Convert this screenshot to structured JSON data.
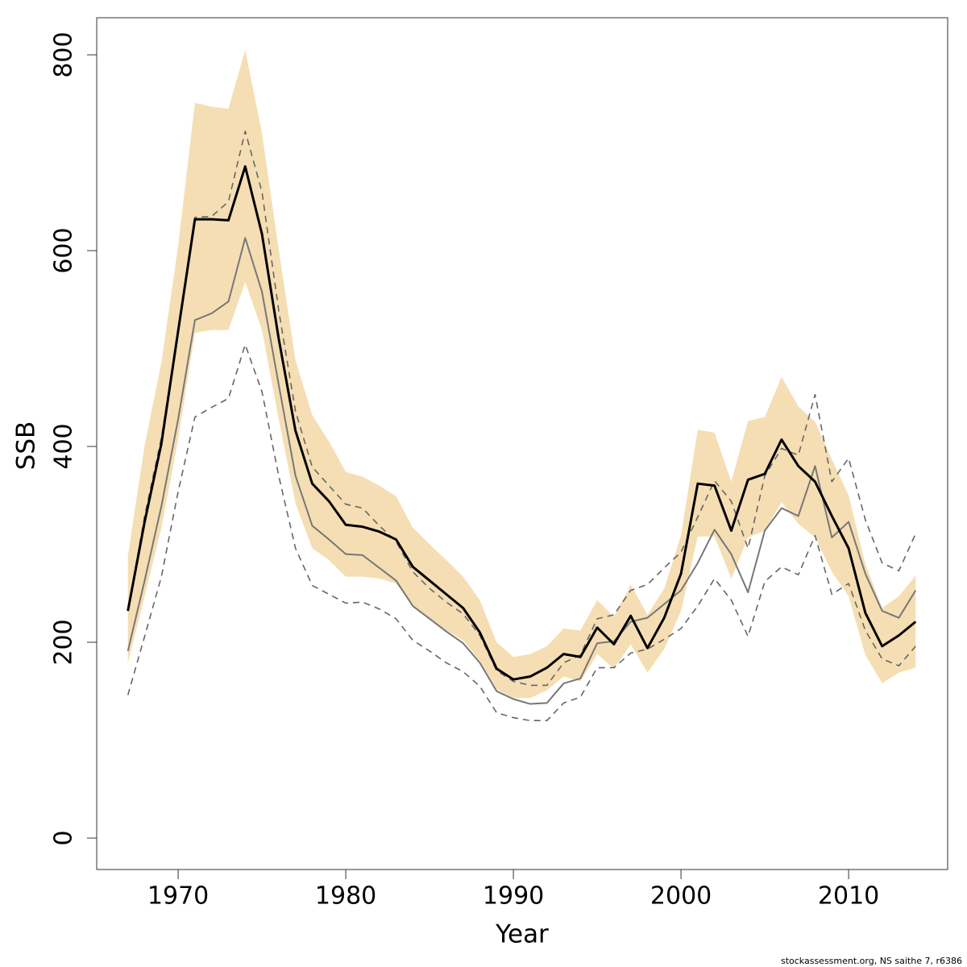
{
  "chart_data": {
    "type": "line",
    "x_label": "Year",
    "y_label": "SSB",
    "footnote": "stockassessment.org, NS saithe 7, r6386",
    "x": [
      1967,
      1968,
      1969,
      1970,
      1971,
      1972,
      1973,
      1974,
      1975,
      1976,
      1977,
      1978,
      1979,
      1980,
      1981,
      1982,
      1983,
      1984,
      1985,
      1986,
      1987,
      1988,
      1989,
      1990,
      1991,
      1992,
      1993,
      1994,
      1995,
      1996,
      1997,
      1998,
      1999,
      2000,
      2001,
      2002,
      2003,
      2004,
      2005,
      2006,
      2007,
      2008,
      2009,
      2010,
      2011,
      2012,
      2013,
      2014
    ],
    "band": {
      "color": "#f5deb3",
      "upper": [
        288,
        401,
        486,
        605,
        751,
        747,
        745,
        805,
        720,
        601,
        488,
        432,
        405,
        374,
        369,
        360,
        349,
        317,
        300,
        284,
        267,
        243,
        200,
        185,
        188,
        196,
        214,
        212,
        243,
        226,
        259,
        228,
        255,
        309,
        417,
        414,
        364,
        426,
        430,
        471,
        441,
        425,
        387,
        350,
        280,
        235,
        247,
        268
      ],
      "lower": [
        179,
        247,
        317,
        407,
        516,
        519,
        519,
        568,
        519,
        428,
        342,
        296,
        284,
        267,
        267,
        265,
        260,
        237,
        224,
        212,
        202,
        181,
        152,
        143,
        143,
        151,
        165,
        160,
        188,
        173,
        198,
        169,
        193,
        232,
        308,
        308,
        265,
        307,
        314,
        343,
        321,
        307,
        272,
        247,
        187,
        158,
        169,
        174
      ]
    },
    "series": [
      {
        "color": "#666666",
        "dashed": true,
        "width": 1.6,
        "values": [
          232,
          329,
          409,
          518,
          634,
          635,
          650,
          722,
          660,
          539,
          436,
          379,
          360,
          341,
          337,
          319,
          303,
          272,
          255,
          241,
          229,
          207,
          171,
          160,
          156,
          156,
          179,
          187,
          224,
          228,
          253,
          259,
          276,
          292,
          328,
          365,
          344,
          296,
          370,
          398,
          391,
          453,
          364,
          388,
          325,
          281,
          273,
          311
        ]
      },
      {
        "color": "#666666",
        "dashed": true,
        "width": 1.6,
        "values": [
          146,
          206,
          267,
          354,
          430,
          440,
          449,
          504,
          456,
          370,
          296,
          258,
          249,
          240,
          241,
          234,
          224,
          202,
          191,
          179,
          170,
          155,
          128,
          123,
          120,
          120,
          138,
          144,
          174,
          174,
          189,
          193,
          203,
          214,
          237,
          265,
          243,
          206,
          262,
          277,
          269,
          309,
          249,
          260,
          212,
          183,
          176,
          196
        ]
      },
      {
        "color": "#777777",
        "dashed": false,
        "width": 2,
        "values": [
          191,
          263,
          339,
          428,
          529,
          536,
          548,
          613,
          558,
          463,
          370,
          319,
          305,
          290,
          289,
          276,
          263,
          237,
          224,
          211,
          199,
          179,
          150,
          142,
          137,
          138,
          158,
          163,
          199,
          201,
          221,
          225,
          239,
          253,
          281,
          315,
          290,
          251,
          314,
          337,
          329,
          380,
          307,
          323,
          270,
          232,
          225,
          253
        ]
      },
      {
        "color": "#000000",
        "dashed": false,
        "width": 3,
        "values": [
          232,
          323,
          403,
          518,
          632,
          632,
          631,
          686,
          617,
          510,
          416,
          362,
          344,
          320,
          318,
          313,
          305,
          277,
          263,
          249,
          235,
          210,
          173,
          162,
          165,
          174,
          188,
          185,
          215,
          198,
          227,
          194,
          225,
          270,
          362,
          360,
          314,
          366,
          372,
          407,
          380,
          364,
          329,
          296,
          230,
          196,
          207,
          221
        ]
      }
    ],
    "xlim": [
      1965.14,
      2015.91
    ],
    "ylim": [
      -32.1,
      837.9
    ],
    "xticks": [
      1970,
      1980,
      1990,
      2000,
      2010
    ],
    "yticks": [
      0,
      200,
      400,
      600,
      800
    ]
  }
}
